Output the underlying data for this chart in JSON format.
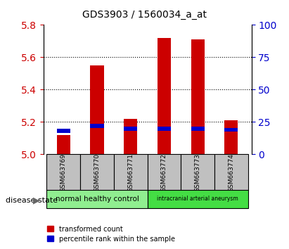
{
  "title": "GDS3903 / 1560034_a_at",
  "samples": [
    "GSM663769",
    "GSM663770",
    "GSM663771",
    "GSM663772",
    "GSM663773",
    "GSM663774"
  ],
  "transformed_counts": [
    5.12,
    5.55,
    5.22,
    5.72,
    5.71,
    5.21
  ],
  "percentile_ranks": [
    18,
    22,
    20,
    20,
    20,
    19
  ],
  "ylim_left": [
    5.0,
    5.8
  ],
  "ylim_right": [
    0,
    100
  ],
  "yticks_left": [
    5.0,
    5.2,
    5.4,
    5.6,
    5.8
  ],
  "yticks_right": [
    0,
    25,
    50,
    75,
    100
  ],
  "groups": [
    {
      "label": "normal healthy control",
      "samples": [
        0,
        1,
        2
      ],
      "color": "#90EE90"
    },
    {
      "label": "intracranial arterial aneurysm",
      "samples": [
        3,
        4,
        5
      ],
      "color": "#44DD44"
    }
  ],
  "bar_color_red": "#CC0000",
  "bar_color_blue": "#0000CC",
  "bar_width": 0.4,
  "base_value": 5.0,
  "tick_color_left": "#CC0000",
  "tick_color_right": "#0000CC",
  "grid_color": "black",
  "grid_style": "dotted",
  "label_color_left": "#CC0000",
  "label_color_right": "#0000CC",
  "background_color": "#FFFFFF",
  "plot_bg_color": "#FFFFFF",
  "xticklabel_area_color": "#C0C0C0",
  "group_label_color_1": "#000000",
  "group_label_color_2": "#000000",
  "disease_state_label": "disease state",
  "legend_red_label": "transformed count",
  "legend_blue_label": "percentile rank within the sample"
}
